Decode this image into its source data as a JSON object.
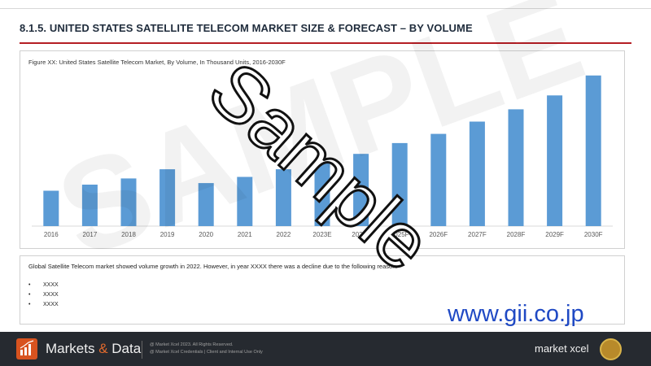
{
  "header": {
    "title": "8.1.5. UNITED STATES SATELLITE TELECOM MARKET SIZE & FORECAST – BY VOLUME"
  },
  "figure": {
    "caption": "Figure XX: United States Satellite Telecom Market, By Volume, In Thousand Units, 2016-2030F"
  },
  "chart_data": {
    "type": "bar",
    "categories": [
      "2016",
      "2017",
      "2018",
      "2019",
      "2020",
      "2021",
      "2022",
      "2023E",
      "2024F",
      "2025F",
      "2026F",
      "2027F",
      "2028F",
      "2029F",
      "2030F"
    ],
    "values": [
      23,
      27,
      31,
      37,
      28,
      32,
      37,
      42,
      47,
      54,
      60,
      68,
      76,
      85,
      98
    ],
    "ylim": [
      0,
      100
    ],
    "grid": false,
    "color": "#5b9bd5",
    "title": "",
    "xlabel": "",
    "ylabel": ""
  },
  "summary": {
    "text": "Global Satellite Telecom market showed volume growth in 2022. However, in year XXXX there was a decline due to the following reason:",
    "bullets": [
      "XXXX",
      "XXXX",
      "XXXX"
    ]
  },
  "watermark": {
    "background_word": "SAMPLE",
    "stamp": "Sample",
    "url": "www.gii.co.jp"
  },
  "footer": {
    "logo_left": "Markets",
    "logo_amp": "&",
    "logo_right": "Data",
    "note_line1": "@ Market Xcel 2023. All Rights Reserved.",
    "note_line2": "@ Market Xcel Credentials | Client and Internal Use Only",
    "brand": "market xcel"
  }
}
